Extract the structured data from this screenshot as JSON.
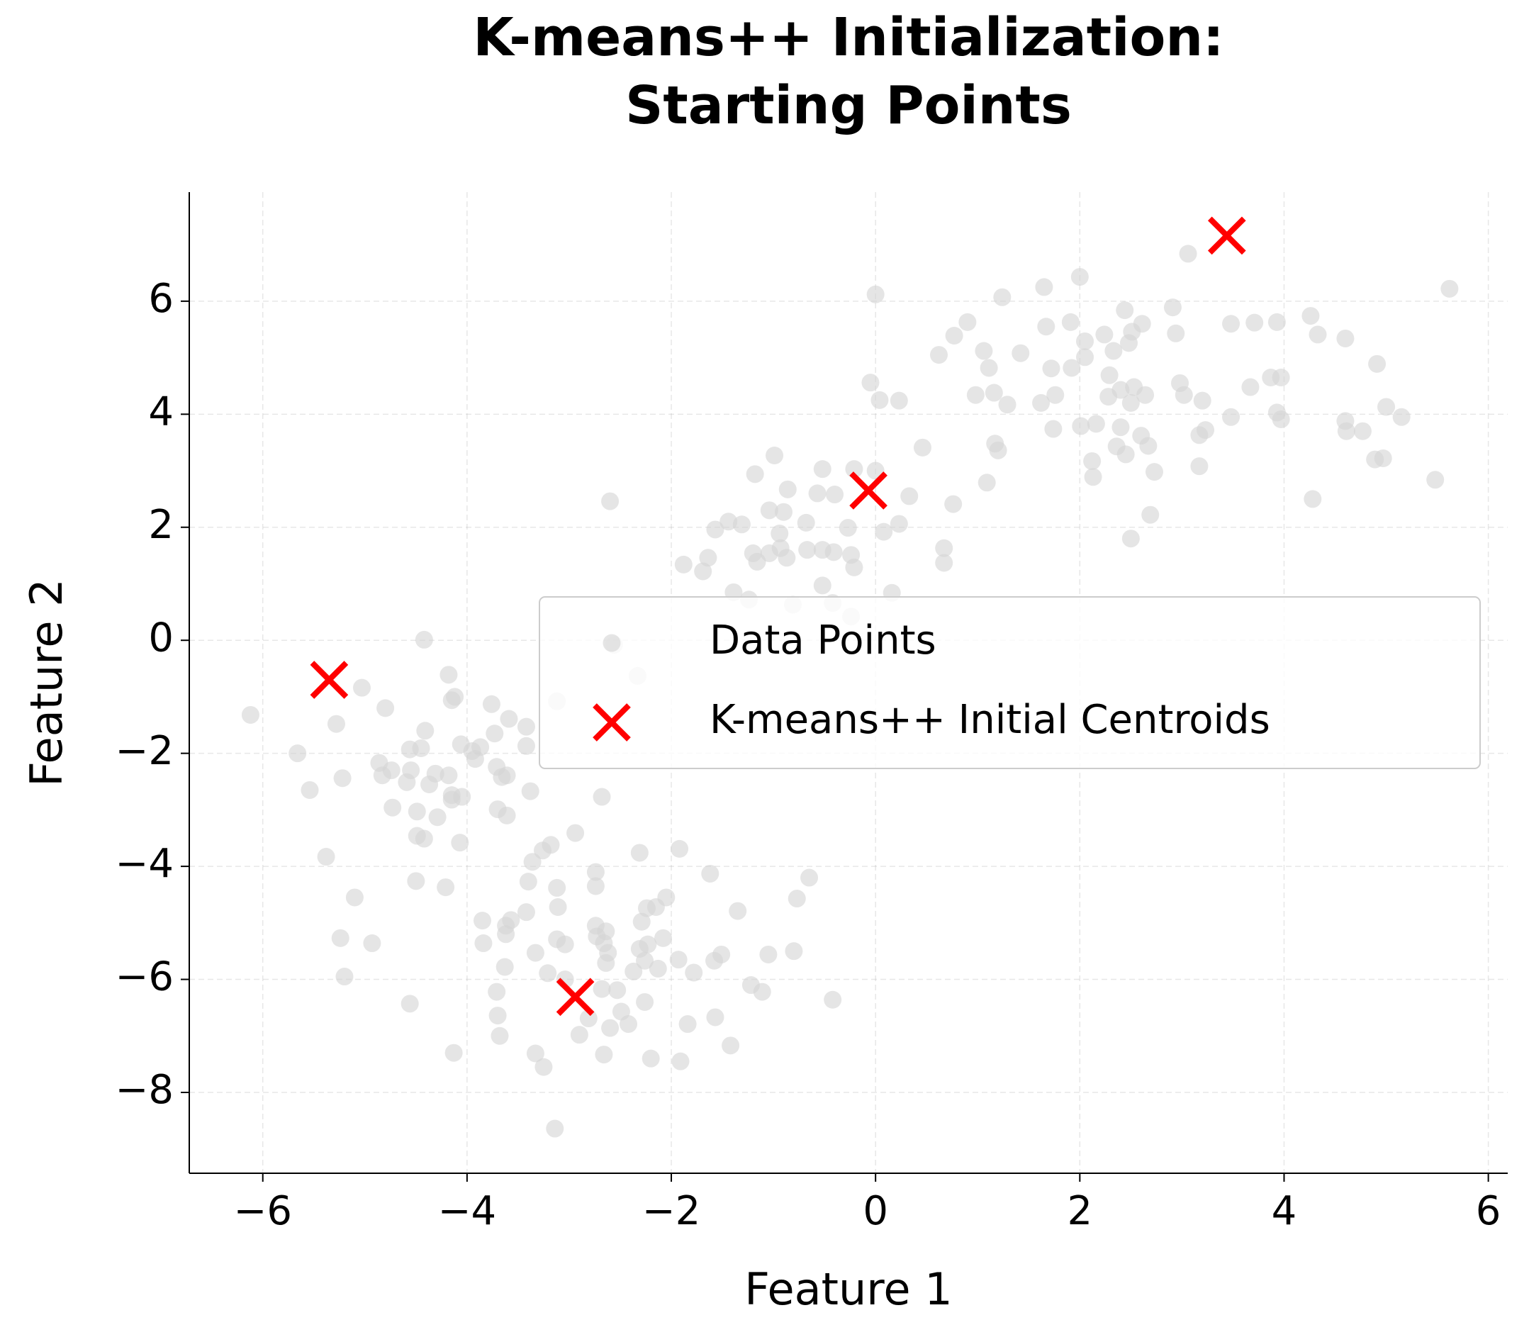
{
  "chart_data": {
    "type": "scatter",
    "title": "K-means++ Initialization:\nStarting Points",
    "x_label": "Feature 1",
    "y_label": "Feature 2",
    "xlim": [
      -6.72,
      6.19
    ],
    "ylim": [
      -9.43,
      7.93
    ],
    "xticks": [
      {
        "value": -6,
        "label": "−6"
      },
      {
        "value": -4,
        "label": "−4"
      },
      {
        "value": -2,
        "label": "−2"
      },
      0,
      2,
      4,
      6
    ],
    "yticks": [
      {
        "value": -8,
        "label": "−8"
      },
      {
        "value": -6,
        "label": "−6"
      },
      {
        "value": -4,
        "label": "−4"
      },
      {
        "value": -2,
        "label": "−2"
      },
      0,
      2,
      4,
      6
    ],
    "grid": true,
    "legend": "center right",
    "series": [
      {
        "name": "Data Points",
        "color": "#d3d3d3",
        "marker": "circle",
        "x": [
          0.0,
          2.0,
          1.65,
          1.24,
          5.62,
          3.06,
          2.91,
          4.26,
          3.93,
          3.71,
          3.48,
          2.44,
          1.91,
          1.67,
          0.9,
          0.77,
          0.62,
          1.06,
          1.42,
          2.05,
          2.24,
          2.51,
          2.61,
          2.94,
          2.48,
          2.33,
          2.05,
          1.72,
          1.92,
          1.11,
          4.33,
          4.6,
          4.91,
          3.87,
          3.97,
          -0.05,
          0.04,
          0.23,
          0.98,
          1.16,
          1.29,
          1.62,
          1.76,
          2.29,
          2.4,
          2.53,
          2.64,
          2.98,
          3.02,
          3.2,
          3.67,
          2.28,
          2.5,
          5.0,
          5.15,
          4.6,
          3.97,
          3.48,
          3.93,
          3.23,
          3.17,
          4.77,
          4.61,
          1.74,
          2.01,
          2.16,
          2.4,
          2.6,
          2.36,
          2.45,
          2.67,
          1.17,
          1.2,
          2.12,
          3.17,
          2.73,
          2.13,
          1.09,
          4.97,
          4.89,
          5.48,
          4.28,
          2.69,
          2.5,
          0.46,
          0.33,
          0.76,
          0.23,
          0.08,
          0.67,
          0.67,
          0.16,
          -0.99,
          -1.18,
          -0.52,
          -0.21,
          0.0,
          -0.86,
          -0.57,
          -0.4,
          -1.04,
          -0.9,
          -0.68,
          -0.27,
          -1.44,
          -1.31,
          -1.57,
          -0.94,
          -0.93,
          -1.04,
          -1.2,
          -1.16,
          -0.87,
          -0.67,
          -0.52,
          -0.41,
          -0.24,
          -0.21,
          -1.64,
          -1.88,
          -1.69,
          -0.52,
          -1.39,
          -1.24,
          -0.81,
          -0.42,
          -0.24,
          -2.6,
          -2.56,
          -2.33,
          -3.12,
          -4.42,
          -4.18,
          -6.12,
          -5.03,
          -4.8,
          -5.28,
          -4.15,
          -4.12,
          -3.76,
          -3.59,
          -3.42,
          -4.41,
          -3.73,
          -5.66,
          -4.56,
          -4.45,
          -4.06,
          -3.95,
          -3.87,
          -3.42,
          -3.92,
          -4.86,
          -4.74,
          -4.55,
          -4.31,
          -3.71,
          -3.66,
          -4.83,
          -4.18,
          -3.61,
          -4.59,
          -4.37,
          -5.22,
          -5.54,
          -4.15,
          -4.05,
          -4.15,
          -3.38,
          -2.68,
          -4.73,
          -4.49,
          -3.7,
          -4.29,
          -3.61,
          -2.94,
          -4.49,
          -4.42,
          -4.07,
          -3.18,
          -3.26,
          -1.92,
          -2.31,
          -5.38,
          -3.36,
          -2.74,
          -1.62,
          -4.5,
          -3.4,
          -0.65,
          -4.21,
          -3.12,
          -2.74,
          -5.1,
          -0.77,
          -2.05,
          -2.15,
          -2.24,
          -3.11,
          -1.35,
          -3.42,
          -3.85,
          -3.57,
          -2.29,
          -3.62,
          -2.74,
          -2.64,
          -2.08,
          -2.73,
          -2.23,
          -3.12,
          -3.04,
          -5.24,
          -4.93,
          -3.84,
          -3.62,
          -2.66,
          -2.62,
          -2.31,
          -3.33,
          -1.51,
          -1.05,
          -0.8,
          -2.64,
          -2.26,
          -1.93,
          -1.58,
          -3.63,
          -2.37,
          -2.13,
          -1.78,
          -3.21,
          -5.2,
          -3.04,
          -2.68,
          -2.53,
          -3.71,
          -1.22,
          -1.11,
          -2.26,
          -0.42,
          -4.56,
          -3.7,
          -2.49,
          -2.81,
          -1.57,
          -2.42,
          -2.6,
          -1.84,
          -2.9,
          -3.68,
          -1.42,
          -4.13,
          -3.33,
          -2.66,
          -2.2,
          -1.91,
          -3.25,
          -3.14
        ],
        "y": [
          6.12,
          6.43,
          6.25,
          6.07,
          6.22,
          6.84,
          5.89,
          5.74,
          5.63,
          5.62,
          5.6,
          5.84,
          5.63,
          5.55,
          5.63,
          5.39,
          5.05,
          5.12,
          5.08,
          5.29,
          5.41,
          5.46,
          5.6,
          5.43,
          5.26,
          5.12,
          5.01,
          4.81,
          4.82,
          4.82,
          5.41,
          5.34,
          4.89,
          4.65,
          4.65,
          4.56,
          4.25,
          4.24,
          4.34,
          4.38,
          4.17,
          4.2,
          4.34,
          4.69,
          4.43,
          4.48,
          4.34,
          4.55,
          4.34,
          4.24,
          4.48,
          4.31,
          4.2,
          4.13,
          3.95,
          3.88,
          3.91,
          3.95,
          4.03,
          3.72,
          3.63,
          3.7,
          3.7,
          3.74,
          3.79,
          3.83,
          3.77,
          3.62,
          3.43,
          3.29,
          3.44,
          3.48,
          3.36,
          3.17,
          3.08,
          2.98,
          2.89,
          2.79,
          3.22,
          3.2,
          2.84,
          2.5,
          2.22,
          1.8,
          3.41,
          2.55,
          2.41,
          2.06,
          1.92,
          1.63,
          1.37,
          0.84,
          3.27,
          2.94,
          3.03,
          3.03,
          3.0,
          2.67,
          2.6,
          2.58,
          2.3,
          2.27,
          2.08,
          1.99,
          2.1,
          2.05,
          1.96,
          1.89,
          1.63,
          1.54,
          1.54,
          1.39,
          1.46,
          1.6,
          1.6,
          1.56,
          1.51,
          1.29,
          1.46,
          1.34,
          1.22,
          0.97,
          0.85,
          0.72,
          0.63,
          0.66,
          0.42,
          2.46,
          -0.08,
          -0.63,
          -1.08,
          0.01,
          -0.61,
          -1.32,
          -0.84,
          -1.2,
          -1.48,
          -1.06,
          -1.0,
          -1.13,
          -1.39,
          -1.53,
          -1.6,
          -1.65,
          -2.0,
          -1.93,
          -1.91,
          -1.84,
          -1.96,
          -1.89,
          -1.87,
          -2.1,
          -2.17,
          -2.3,
          -2.3,
          -2.36,
          -2.24,
          -2.42,
          -2.39,
          -2.39,
          -2.39,
          -2.51,
          -2.55,
          -2.44,
          -2.65,
          -2.74,
          -2.77,
          -2.82,
          -2.67,
          -2.77,
          -2.96,
          -3.03,
          -2.99,
          -3.13,
          -3.1,
          -3.41,
          -3.46,
          -3.51,
          -3.58,
          -3.62,
          -3.72,
          -3.69,
          -3.76,
          -3.83,
          -3.92,
          -4.1,
          -4.13,
          -4.26,
          -4.27,
          -4.2,
          -4.37,
          -4.38,
          -4.35,
          -4.55,
          -4.57,
          -4.55,
          -4.72,
          -4.74,
          -4.72,
          -4.79,
          -4.81,
          -4.96,
          -4.95,
          -4.98,
          -5.05,
          -5.05,
          -5.15,
          -5.27,
          -5.24,
          -5.38,
          -5.29,
          -5.38,
          -5.27,
          -5.36,
          -5.36,
          -5.2,
          -5.36,
          -5.53,
          -5.46,
          -5.53,
          -5.56,
          -5.56,
          -5.5,
          -5.71,
          -5.67,
          -5.65,
          -5.67,
          -5.78,
          -5.86,
          -5.81,
          -5.88,
          -5.89,
          -5.95,
          -6.0,
          -6.17,
          -6.19,
          -6.22,
          -6.1,
          -6.22,
          -6.4,
          -6.36,
          -6.43,
          -6.64,
          -6.57,
          -6.69,
          -6.67,
          -6.79,
          -6.86,
          -6.79,
          -6.98,
          -7.0,
          -7.17,
          -7.3,
          -7.31,
          -7.33,
          -7.4,
          -7.45,
          -7.55,
          -8.64
        ]
      },
      {
        "name": "K-means++ Initial Centroids",
        "color": "#ff0000",
        "marker": "x",
        "x": [
          3.44,
          -0.07,
          -5.35,
          -2.94
        ],
        "y": [
          7.16,
          2.65,
          -0.7,
          -6.31
        ]
      }
    ]
  }
}
